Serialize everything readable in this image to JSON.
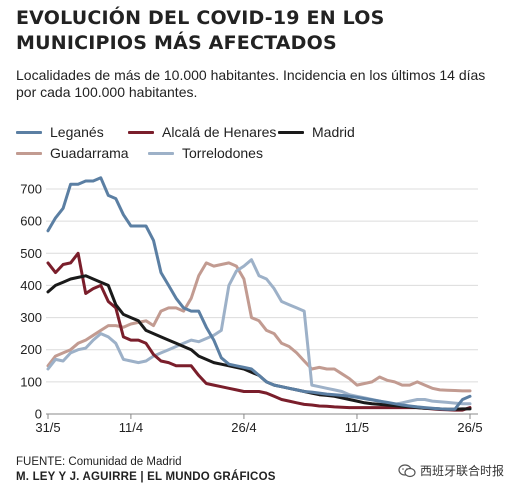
{
  "header": {
    "title": "EVOLUCIÓN DEL COVID-19 EN LOS MUNICIPIOS MÁS AFECTADOS",
    "subtitle": "Localidades de más de 10.000 habitantes. Incidencia en los últimos 14 días por cada 100.000 habitantes."
  },
  "footer": {
    "source": "FUENTE: Comunidad de Madrid",
    "credit": "M. LEY Y J. AGUIRRE | EL MUNDO GRÁFICOS"
  },
  "watermark": {
    "text": "西班牙联合时报",
    "icon": "wechat-icon"
  },
  "chart_data": {
    "type": "line",
    "xlabel": "",
    "ylabel": "",
    "ylim": [
      0,
      730
    ],
    "yticks": [
      0,
      100,
      200,
      300,
      400,
      500,
      600,
      700
    ],
    "xticks": [
      {
        "label": "31/5",
        "index": 0
      },
      {
        "label": "11/4",
        "index": 11
      },
      {
        "label": "26/4",
        "index": 26
      },
      {
        "label": "11/5",
        "index": 41
      },
      {
        "label": "26/5",
        "index": 56
      }
    ],
    "grid": true,
    "series": [
      {
        "name": "Leganés",
        "color": "#5b7fa3",
        "values": [
          570,
          610,
          640,
          715,
          715,
          725,
          725,
          735,
          680,
          670,
          620,
          585,
          585,
          585,
          540,
          440,
          400,
          360,
          330,
          320,
          320,
          270,
          230,
          175,
          155,
          150,
          145,
          140,
          120,
          100,
          90,
          85,
          80,
          75,
          70,
          68,
          65,
          62,
          60,
          58,
          55,
          52,
          48,
          44,
          40,
          36,
          32,
          28,
          25,
          22,
          20,
          18,
          16,
          15,
          15,
          45,
          55
        ]
      },
      {
        "name": "Alcalá de Henares",
        "color": "#7a1e2b",
        "values": [
          470,
          440,
          465,
          470,
          500,
          375,
          390,
          400,
          350,
          330,
          240,
          230,
          230,
          220,
          185,
          165,
          160,
          150,
          150,
          150,
          120,
          95,
          90,
          85,
          80,
          75,
          70,
          70,
          70,
          65,
          55,
          45,
          40,
          35,
          30,
          28,
          25,
          24,
          22,
          21,
          20,
          20,
          20,
          20,
          20,
          20,
          20,
          20,
          20,
          20,
          18,
          16,
          14,
          13,
          12,
          12,
          20
        ]
      },
      {
        "name": "Madrid",
        "color": "#1a1a1a",
        "values": [
          380,
          400,
          410,
          420,
          425,
          430,
          420,
          410,
          400,
          340,
          310,
          300,
          290,
          260,
          250,
          240,
          230,
          220,
          210,
          200,
          180,
          170,
          160,
          155,
          150,
          145,
          140,
          130,
          120,
          100,
          90,
          85,
          80,
          75,
          70,
          65,
          60,
          58,
          55,
          50,
          45,
          40,
          35,
          32,
          30,
          28,
          26,
          24,
          22,
          20,
          18,
          17,
          16,
          15,
          15,
          16,
          16
        ]
      },
      {
        "name": "Guadarrama",
        "color": "#c29b91",
        "values": [
          150,
          180,
          190,
          200,
          220,
          230,
          245,
          260,
          275,
          275,
          270,
          280,
          285,
          290,
          275,
          320,
          330,
          330,
          320,
          360,
          430,
          470,
          460,
          465,
          470,
          460,
          420,
          300,
          290,
          260,
          250,
          220,
          210,
          190,
          165,
          140,
          145,
          140,
          140,
          125,
          110,
          90,
          95,
          100,
          115,
          105,
          100,
          90,
          90,
          100,
          90,
          80,
          75,
          74,
          73,
          72,
          72
        ]
      },
      {
        "name": "Torrelodones",
        "color": "#9db1c8",
        "values": [
          140,
          170,
          165,
          190,
          200,
          205,
          230,
          250,
          240,
          220,
          170,
          165,
          160,
          165,
          180,
          190,
          200,
          210,
          220,
          230,
          225,
          235,
          245,
          260,
          400,
          445,
          460,
          480,
          430,
          420,
          390,
          350,
          340,
          330,
          320,
          90,
          85,
          80,
          75,
          70,
          60,
          55,
          50,
          45,
          40,
          35,
          30,
          35,
          40,
          45,
          45,
          40,
          38,
          36,
          34,
          32,
          32
        ]
      }
    ]
  }
}
